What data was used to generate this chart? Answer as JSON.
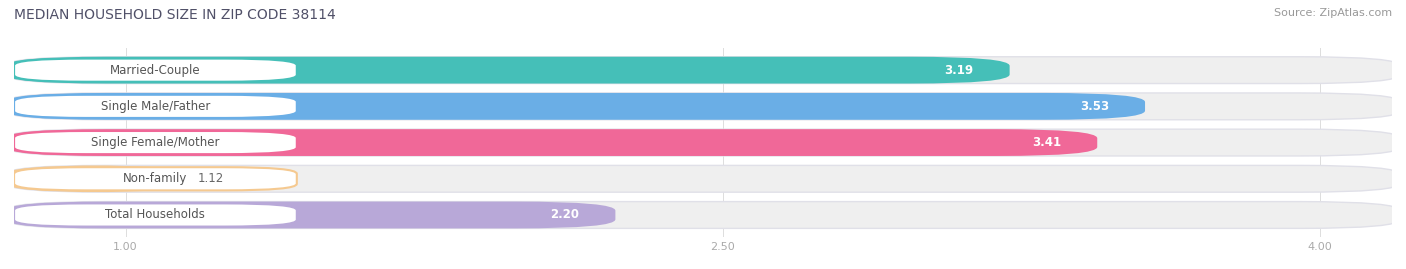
{
  "title": "MEDIAN HOUSEHOLD SIZE IN ZIP CODE 38114",
  "source": "Source: ZipAtlas.com",
  "categories": [
    "Married-Couple",
    "Single Male/Father",
    "Single Female/Mother",
    "Non-family",
    "Total Households"
  ],
  "values": [
    3.19,
    3.53,
    3.41,
    1.12,
    2.2
  ],
  "bar_colors": [
    "#45bfb8",
    "#6aaee6",
    "#f06898",
    "#f5c990",
    "#b8a8d8"
  ],
  "label_border_colors": [
    "#45bfb8",
    "#6aaee6",
    "#f06898",
    "#f5c990",
    "#b8a8d8"
  ],
  "xlim_start": 0.72,
  "xlim_end": 4.18,
  "xticks": [
    1.0,
    2.5,
    4.0
  ],
  "xtick_labels": [
    "1.00",
    "2.50",
    "4.00"
  ],
  "background_color": "#ffffff",
  "bar_bg_color": "#efefef",
  "bar_bg_outline": "#e0e0e8",
  "label_bg_color": "#ffffff",
  "category_label_color": "#555555",
  "value_label_white_color": "#ffffff",
  "value_label_dark_color": "#666666",
  "title_color": "#505068",
  "source_color": "#999999",
  "title_fontsize": 10,
  "source_fontsize": 8,
  "bar_label_fontsize": 8.5,
  "value_fontsize": 8.5,
  "tick_fontsize": 8,
  "bar_height": 0.68,
  "bar_gap": 0.06,
  "n_bars": 5
}
